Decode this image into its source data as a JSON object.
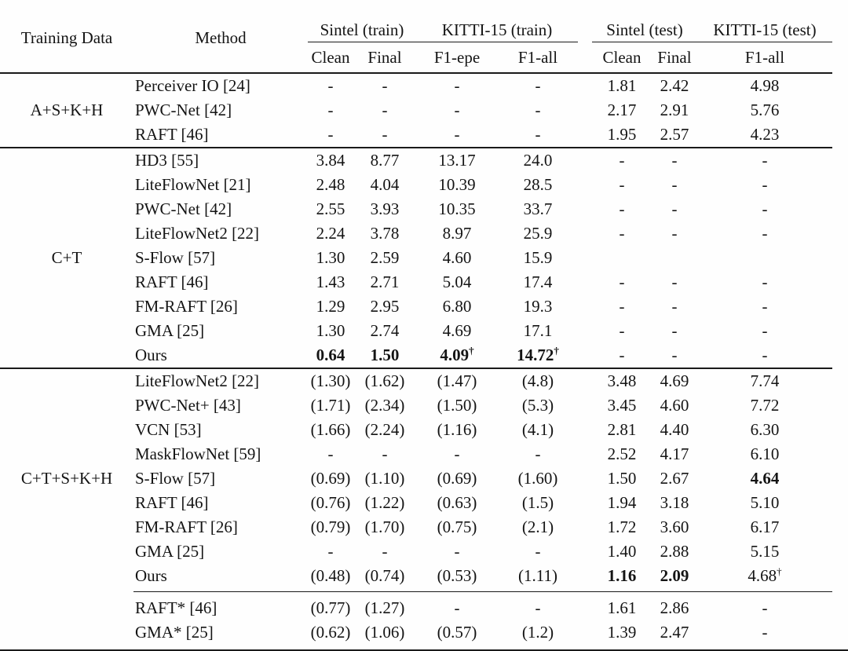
{
  "header": {
    "training_data": "Training Data",
    "method": "Method",
    "groups": [
      {
        "label": "Sintel (train)",
        "subs": [
          "Clean",
          "Final"
        ]
      },
      {
        "label": "KITTI-15 (train)",
        "subs": [
          "F1-epe",
          "F1-all"
        ]
      },
      {
        "label": "Sintel (test)",
        "subs": [
          "Clean",
          "Final"
        ]
      },
      {
        "label": "KITTI-15 (test)",
        "subs": [
          "F1-all"
        ]
      }
    ]
  },
  "sections": [
    {
      "training_data": "A+S+K+H",
      "divider": "heavy",
      "rows": [
        {
          "method": "Perceiver IO [24]",
          "values": [
            "-",
            "-",
            "-",
            "-",
            "1.81",
            "2.42",
            "4.98"
          ],
          "bold": []
        },
        {
          "method": "PWC-Net [42]",
          "values": [
            "-",
            "-",
            "-",
            "-",
            "2.17",
            "2.91",
            "5.76"
          ],
          "bold": []
        },
        {
          "method": "RAFT [46]",
          "values": [
            "-",
            "-",
            "-",
            "-",
            "1.95",
            "2.57",
            "4.23"
          ],
          "bold": []
        }
      ]
    },
    {
      "training_data": "C+T",
      "divider": "heavy",
      "rows": [
        {
          "method": "HD3 [55]",
          "values": [
            "3.84",
            "8.77",
            "13.17",
            "24.0",
            "-",
            "-",
            "-"
          ],
          "bold": []
        },
        {
          "method": "LiteFlowNet [21]",
          "values": [
            "2.48",
            "4.04",
            "10.39",
            "28.5",
            "-",
            "-",
            "-"
          ],
          "bold": []
        },
        {
          "method": "PWC-Net [42]",
          "values": [
            "2.55",
            "3.93",
            "10.35",
            "33.7",
            "-",
            "-",
            "-"
          ],
          "bold": []
        },
        {
          "method": "LiteFlowNet2 [22]",
          "values": [
            "2.24",
            "3.78",
            "8.97",
            "25.9",
            "-",
            "-",
            "-"
          ],
          "bold": []
        },
        {
          "method": "S-Flow [57]",
          "values": [
            "1.30",
            "2.59",
            "4.60",
            "15.9",
            "",
            "",
            ""
          ],
          "bold": []
        },
        {
          "method": "RAFT [46]",
          "values": [
            "1.43",
            "2.71",
            "5.04",
            "17.4",
            "-",
            "-",
            "-"
          ],
          "bold": []
        },
        {
          "method": "FM-RAFT [26]",
          "values": [
            "1.29",
            "2.95",
            "6.80",
            "19.3",
            "-",
            "-",
            "-"
          ],
          "bold": []
        },
        {
          "method": "GMA [25]",
          "values": [
            "1.30",
            "2.74",
            "4.69",
            "17.1",
            "-",
            "-",
            "-"
          ],
          "bold": []
        },
        {
          "method": "Ours",
          "values": [
            "0.64",
            "1.50",
            "4.09†",
            "14.72†",
            "-",
            "-",
            "-"
          ],
          "bold": [
            0,
            1,
            2,
            3
          ]
        }
      ]
    },
    {
      "training_data": "C+T+S+K+H",
      "divider": "none",
      "rows": [
        {
          "method": "LiteFlowNet2 [22]",
          "values": [
            "(1.30)",
            "(1.62)",
            "(1.47)",
            "(4.8)",
            "3.48",
            "4.69",
            "7.74"
          ],
          "bold": []
        },
        {
          "method": "PWC-Net+ [43]",
          "values": [
            "(1.71)",
            "(2.34)",
            "(1.50)",
            "(5.3)",
            "3.45",
            "4.60",
            "7.72"
          ],
          "bold": []
        },
        {
          "method": "VCN [53]",
          "values": [
            "(1.66)",
            "(2.24)",
            "(1.16)",
            "(4.1)",
            "2.81",
            "4.40",
            "6.30"
          ],
          "bold": []
        },
        {
          "method": "MaskFlowNet [59]",
          "values": [
            "-",
            "-",
            "-",
            "-",
            "2.52",
            "4.17",
            "6.10"
          ],
          "bold": []
        },
        {
          "method": "S-Flow [57]",
          "values": [
            "(0.69)",
            "(1.10)",
            "(0.69)",
            "(1.60)",
            "1.50",
            "2.67",
            "4.64"
          ],
          "bold": [
            6
          ]
        },
        {
          "method": "RAFT [46]",
          "values": [
            "(0.76)",
            "(1.22)",
            "(0.63)",
            "(1.5)",
            "1.94",
            "3.18",
            "5.10"
          ],
          "bold": []
        },
        {
          "method": "FM-RAFT [26]",
          "values": [
            "(0.79)",
            "(1.70)",
            "(0.75)",
            "(2.1)",
            "1.72",
            "3.60",
            "6.17"
          ],
          "bold": []
        },
        {
          "method": "GMA [25]",
          "values": [
            "-",
            "-",
            "-",
            "-",
            "1.40",
            "2.88",
            "5.15"
          ],
          "bold": []
        },
        {
          "method": "Ours",
          "values": [
            "(0.48)",
            "(0.74)",
            "(0.53)",
            "(1.11)",
            "1.16",
            "2.09",
            "4.68†"
          ],
          "bold": [
            4,
            5
          ]
        }
      ]
    },
    {
      "training_data": "",
      "divider": "thin",
      "rows": [
        {
          "method": "RAFT* [46]",
          "values": [
            "(0.77)",
            "(1.27)",
            "-",
            "-",
            "1.61",
            "2.86",
            "-"
          ],
          "bold": []
        },
        {
          "method": "GMA* [25]",
          "values": [
            "(0.62)",
            "(1.06)",
            "(0.57)",
            "(1.2)",
            "1.39",
            "2.47",
            "-"
          ],
          "bold": []
        }
      ]
    }
  ]
}
